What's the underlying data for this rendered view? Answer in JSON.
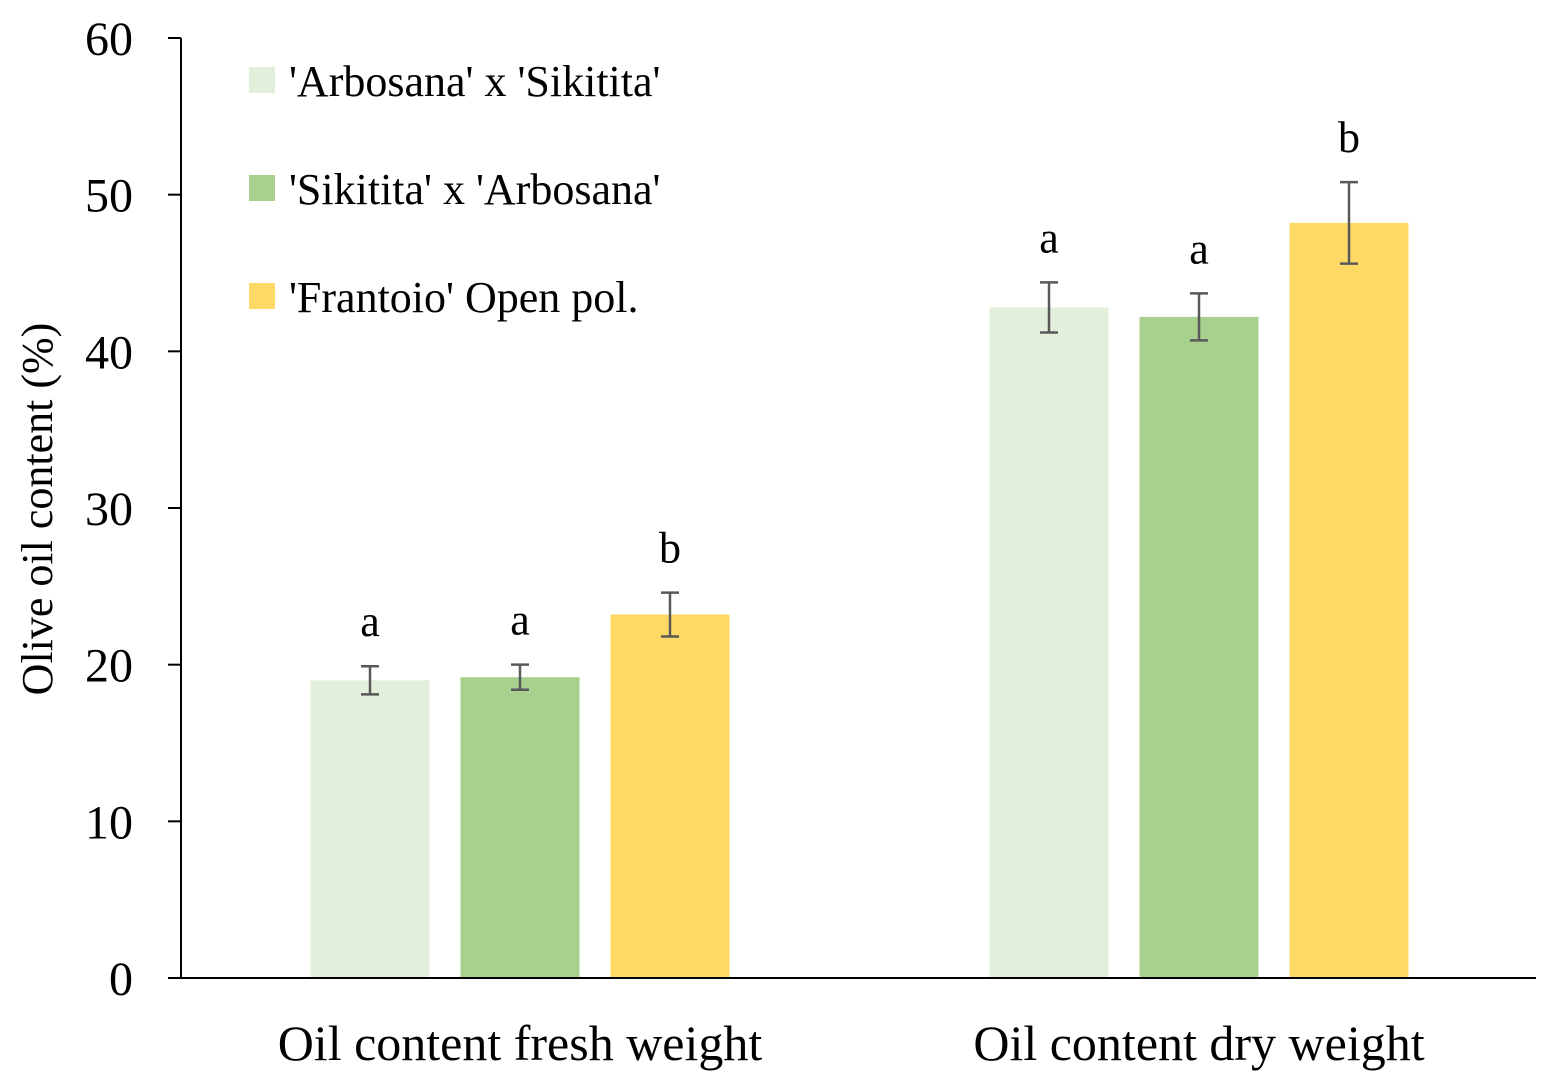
{
  "chart_data": {
    "type": "bar",
    "title": "",
    "xlabel": "",
    "ylabel": "Olive oil content (%)",
    "ylim": [
      0,
      60
    ],
    "yticks": [
      "0",
      "10",
      "20",
      "30",
      "40",
      "50",
      "60"
    ],
    "grid": false,
    "legend_position": "top-left",
    "categories": [
      "Oil content fresh weight",
      "Oil content dry weight"
    ],
    "series": [
      {
        "name": "'Arbosana' x 'Sikitita'",
        "color": "#e2efda",
        "values": [
          19.0,
          42.8
        ],
        "errors": [
          0.9,
          1.6
        ],
        "letters": [
          "a",
          "a"
        ]
      },
      {
        "name": "'Sikitita' x 'Arbosana'",
        "color": "#a9d18e",
        "values": [
          19.2,
          42.2
        ],
        "errors": [
          0.8,
          1.5
        ],
        "letters": [
          "a",
          "a"
        ]
      },
      {
        "name": "'Frantoio' Open pol.",
        "color": "#ffd966",
        "values": [
          23.2,
          48.2
        ],
        "errors": [
          1.4,
          2.6
        ],
        "letters": [
          "b",
          "b"
        ]
      }
    ]
  }
}
